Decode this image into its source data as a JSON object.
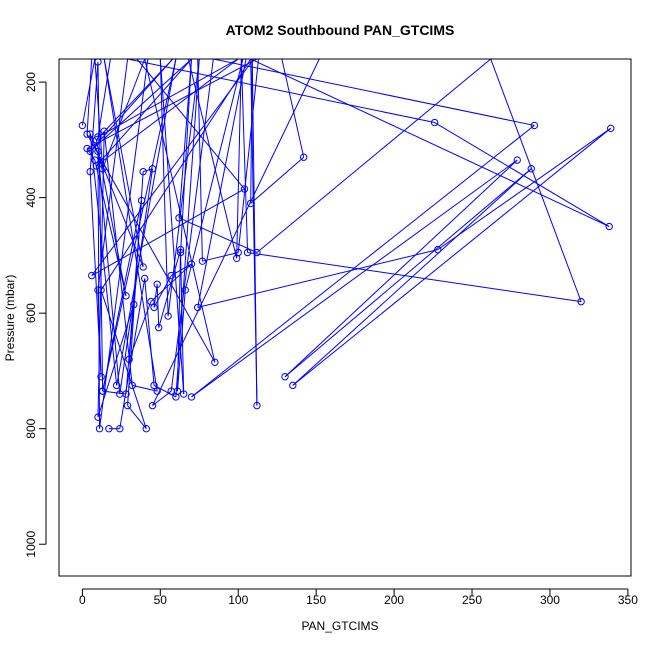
{
  "chart_data": {
    "type": "line",
    "title": "ATOM2 Southbound PAN_GTCIMS",
    "xlabel": "PAN_GTCIMS",
    "ylabel": "Pressure (mbar)",
    "xlim": [
      -15,
      352
    ],
    "ylim": [
      1055,
      160
    ],
    "y_reversed": true,
    "xticks": [
      0,
      50,
      100,
      150,
      200,
      250,
      300,
      350
    ],
    "yticks": [
      200,
      400,
      600,
      800,
      1000
    ],
    "series_color": "#0000ff",
    "marker": "open-circle",
    "series": [
      {
        "points": [
          [
            0,
            275
          ],
          [
            8,
            160
          ],
          [
            13,
            350
          ],
          [
            40,
            160
          ],
          [
            85,
            685
          ],
          [
            3,
            290
          ],
          [
            6,
            160
          ],
          [
            18,
            160
          ],
          [
            10,
            295
          ],
          [
            100,
            160
          ],
          [
            9,
            345
          ],
          [
            70,
            160
          ],
          [
            5,
            320
          ],
          [
            58,
            160
          ],
          [
            9,
            300
          ],
          [
            28,
            570
          ],
          [
            8,
            335
          ],
          [
            3,
            315
          ],
          [
            112,
            160
          ],
          [
            110,
            160
          ],
          [
            6,
            535
          ],
          [
            104,
            385
          ],
          [
            35,
            160
          ],
          [
            42,
            160
          ],
          [
            11,
            800
          ],
          [
            10,
            320
          ],
          [
            24,
            740
          ],
          [
            45,
            350
          ],
          [
            39,
            355
          ],
          [
            29,
            760
          ],
          [
            41,
            800
          ],
          [
            12,
            560
          ],
          [
            108,
            160
          ],
          [
            338,
            450
          ],
          [
            226,
            270
          ],
          [
            29,
            160
          ],
          [
            10,
            560
          ],
          [
            12,
            710
          ],
          [
            5,
            355
          ],
          [
            10,
            165
          ],
          [
            13,
            735
          ],
          [
            28,
            740
          ],
          [
            38,
            405
          ],
          [
            13,
            735
          ],
          [
            60,
            160
          ],
          [
            22,
            725
          ],
          [
            5,
            290
          ],
          [
            39,
            520
          ],
          [
            14,
            160
          ],
          [
            48,
            735
          ],
          [
            32,
            725
          ],
          [
            14,
            285
          ],
          [
            10,
            780
          ],
          [
            33,
            585
          ],
          [
            30,
            680
          ],
          [
            44,
            580
          ],
          [
            70,
            515
          ],
          [
            57,
            535
          ],
          [
            46,
            590
          ],
          [
            48,
            550
          ],
          [
            49,
            625
          ],
          [
            63,
            490
          ],
          [
            61,
            735
          ],
          [
            66,
            560
          ],
          [
            103,
            160
          ],
          [
            74,
            160
          ],
          [
            77,
            510
          ],
          [
            100,
            495
          ],
          [
            113,
            160
          ],
          [
            152,
            160
          ],
          [
            45,
            760
          ],
          [
            57,
            735
          ],
          [
            84,
            160
          ],
          [
            290,
            275
          ],
          [
            70,
            745
          ],
          [
            279,
            335
          ],
          [
            130,
            710
          ],
          [
            288,
            350
          ],
          [
            135,
            725
          ],
          [
            339,
            280
          ],
          [
            228,
            490
          ],
          [
            74,
            590
          ],
          [
            105,
            160
          ],
          [
            122,
            160
          ],
          [
            178,
            160
          ],
          [
            232,
            160
          ],
          [
            108,
            160
          ],
          [
            112,
            760
          ],
          [
            109,
            160
          ],
          [
            108,
            410
          ],
          [
            142,
            330
          ],
          [
            128,
            160
          ],
          [
            182,
            160
          ],
          [
            68,
            160
          ],
          [
            99,
            505
          ],
          [
            102,
            160
          ],
          [
            106,
            495
          ],
          [
            320,
            580
          ],
          [
            262,
            160
          ],
          [
            112,
            495
          ],
          [
            62,
            435
          ],
          [
            70,
            160
          ],
          [
            63,
            495
          ],
          [
            65,
            740
          ],
          [
            50,
            160
          ],
          [
            55,
            605
          ],
          [
            75,
            160
          ],
          [
            60,
            745
          ],
          [
            46,
            725
          ],
          [
            40,
            540
          ],
          [
            24,
            800
          ],
          [
            17,
            800
          ]
        ]
      }
    ]
  }
}
